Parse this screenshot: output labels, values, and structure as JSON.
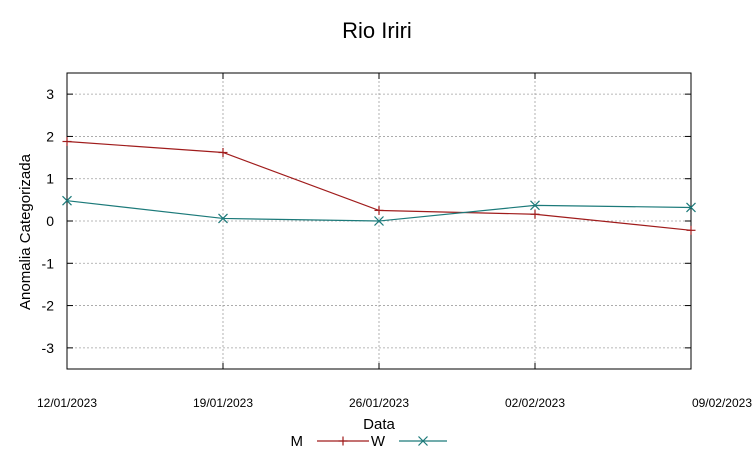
{
  "chart_data": {
    "type": "line",
    "title": "Rio Iriri",
    "xlabel": "Data",
    "ylabel": "Anomalia Categorizada",
    "categories": [
      "12/01/2023",
      "19/01/2023",
      "26/01/2023",
      "02/02/2023",
      "09/02/2023"
    ],
    "ylim": [
      -3.5,
      3.5
    ],
    "yticks": [
      3,
      2,
      1,
      0,
      -1,
      -2,
      -3
    ],
    "ytick_labels": [
      "3",
      "2",
      "1",
      "0",
      "-1",
      "-2",
      "-3"
    ],
    "grid": true,
    "legend_position": "bottom-center",
    "series": [
      {
        "name": "M",
        "color": "#a01c1c",
        "marker": "plus",
        "values": [
          1.88,
          1.62,
          0.25,
          0.16,
          -0.22
        ]
      },
      {
        "name": "W",
        "color": "#1c7a7a",
        "marker": "x",
        "values": [
          0.48,
          0.06,
          0.0,
          0.37,
          0.32
        ]
      }
    ]
  }
}
